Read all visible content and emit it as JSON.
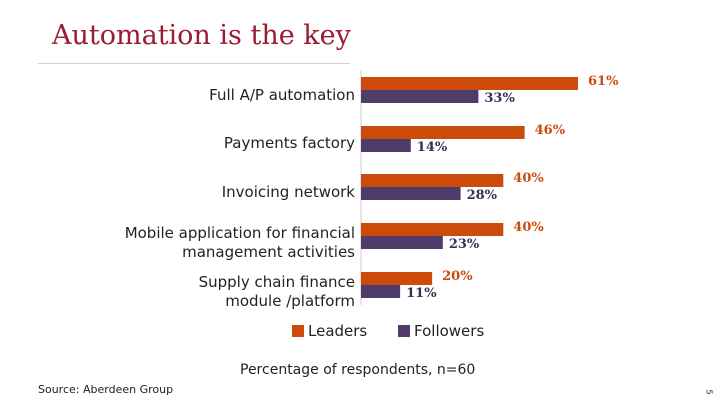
{
  "slide": {
    "title": "Automation is the key",
    "footer": "Percentage of respondents, n=60",
    "source": "Source: Aberdeen Group",
    "page_number": "5"
  },
  "colors": {
    "leaders": "#cc4a0a",
    "followers": "#4f3c6b",
    "title": "#9b1b30"
  },
  "chart_data": {
    "type": "bar",
    "orientation": "horizontal",
    "categories": [
      "Full A/P automation",
      "Payments factory",
      "Invoicing network",
      "Mobile application for financial management activities",
      "Supply chain finance module /platform"
    ],
    "category_lines": [
      [
        "Full A/P automation"
      ],
      [
        "Payments factory"
      ],
      [
        "Invoicing network"
      ],
      [
        "Mobile application for financial",
        "management activities"
      ],
      [
        "Supply chain finance",
        "module /platform"
      ]
    ],
    "series": [
      {
        "name": "Leaders",
        "values": [
          61,
          46,
          40,
          40,
          20
        ],
        "labels": [
          "61%",
          "46%",
          "40%",
          "40%",
          "20%"
        ],
        "color": "#cc4a0a"
      },
      {
        "name": "Followers",
        "values": [
          33,
          14,
          28,
          23,
          11
        ],
        "labels": [
          "33%",
          "14%",
          "28%",
          "23%",
          "11%"
        ],
        "color": "#4f3c6b"
      }
    ],
    "xlim": [
      0,
      61
    ],
    "grid": false,
    "legend_position": "bottom"
  }
}
